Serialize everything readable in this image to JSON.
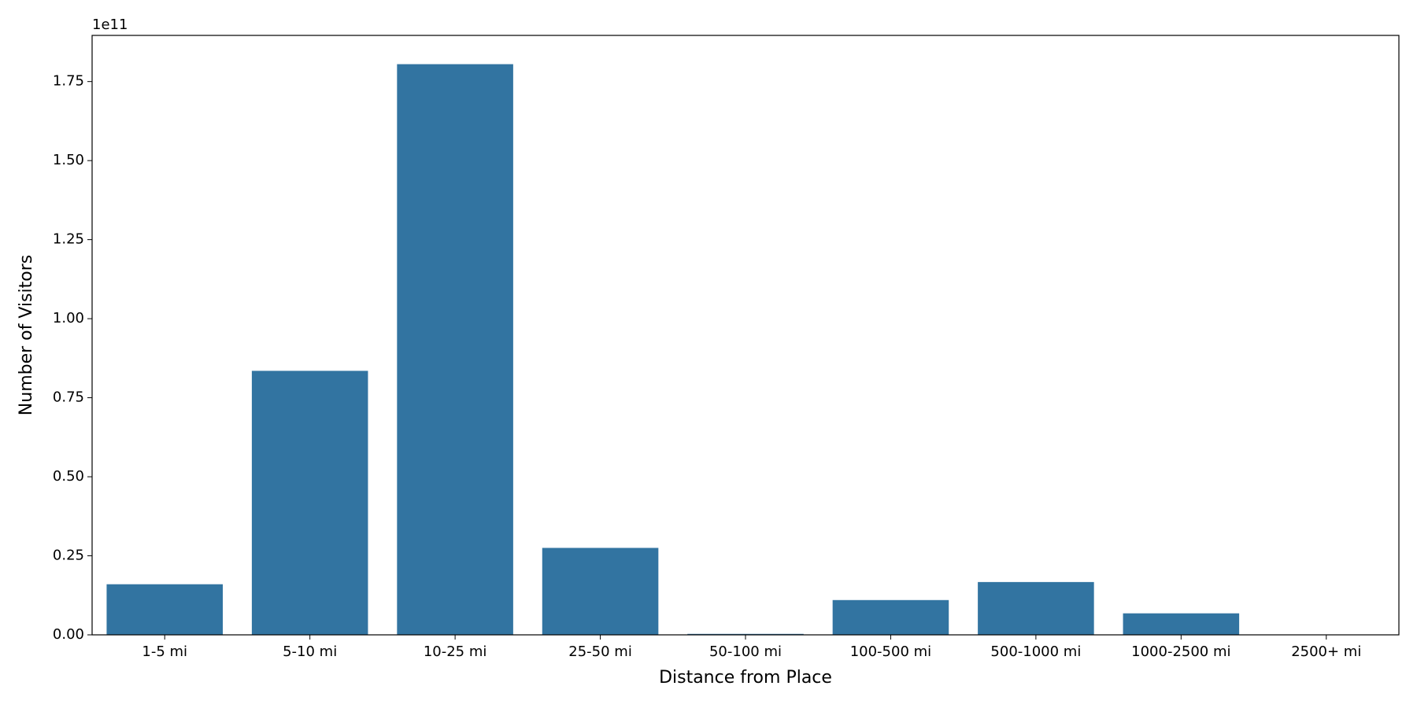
{
  "chart_data": {
    "type": "bar",
    "x_label": "Distance from Place",
    "y_label": "Number of Visitors",
    "y_offset_label": "1e11",
    "categories": [
      "1-5 mi",
      "5-10 mi",
      "10-25 mi",
      "25-50 mi",
      "50-100 mi",
      "100-500 mi",
      "500-1000 mi",
      "1000-2500 mi",
      "2500+ mi"
    ],
    "values": [
      0.16,
      0.835,
      1.805,
      0.275,
      0.003,
      0.11,
      0.167,
      0.068,
      0
    ],
    "color": "#3274a1",
    "ylim": [
      0,
      1.896
    ],
    "yticks": [
      {
        "value": 0,
        "label": "0.00"
      },
      0.25,
      {
        "value": 0.5,
        "label": "0.50"
      },
      0.75,
      {
        "value": 1,
        "label": "1.00"
      },
      1.25,
      {
        "value": 1.5,
        "label": "1.50"
      },
      1.75
    ],
    "grid": false
  }
}
